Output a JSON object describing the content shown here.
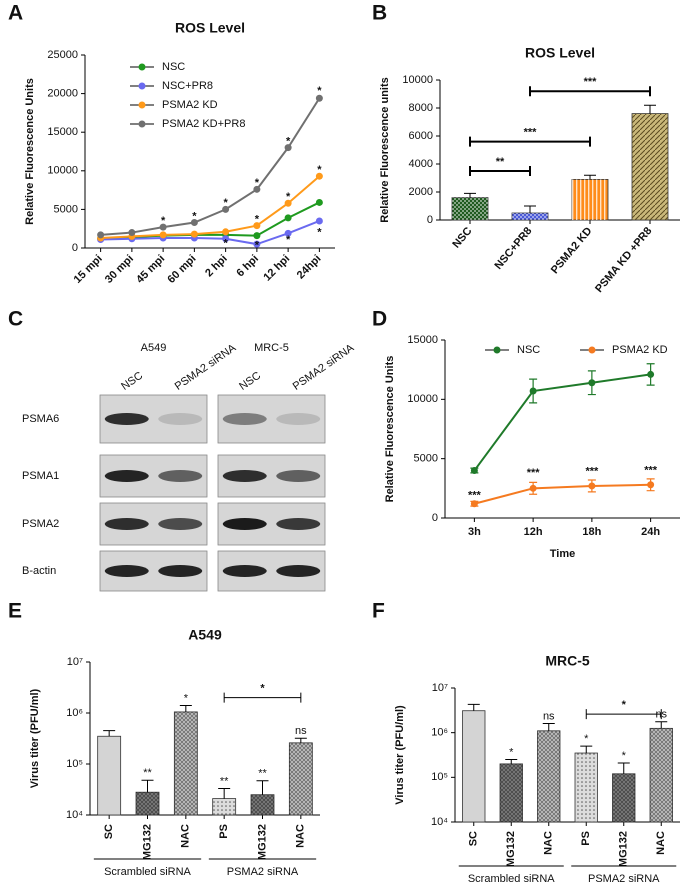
{
  "chart_data": [
    {
      "panel": "A",
      "type": "line",
      "title": "ROS Level",
      "y_label": "Relative Fluorescence Units",
      "categories": [
        "15 mpi",
        "30 mpi",
        "45 mpi",
        "60 mpi",
        "2 hpi",
        "6 hpi",
        "12 hpi",
        "24hpi"
      ],
      "series": [
        {
          "name": "NSC",
          "color": "#1f9a1f",
          "values": [
            1200,
            1400,
            1600,
            1700,
            1700,
            1600,
            3900,
            5900
          ]
        },
        {
          "name": "NSC+PR8",
          "color": "#6a6af0",
          "values": [
            1100,
            1200,
            1300,
            1300,
            1200,
            500,
            1900,
            3500
          ]
        },
        {
          "name": "PSMA2 KD",
          "color": "#ff9a1a",
          "values": [
            1300,
            1500,
            1700,
            1800,
            2100,
            2900,
            5800,
            9300
          ]
        },
        {
          "name": "PSMA2 KD+PR8",
          "color": "#707070",
          "values": [
            1700,
            2000,
            2700,
            3300,
            5000,
            7600,
            13000,
            19400
          ]
        }
      ],
      "ylim": [
        0,
        25000
      ],
      "yticks": [
        0,
        5000,
        10000,
        15000,
        20000,
        25000
      ],
      "legend": "upper left",
      "annotations": [
        {
          "text": "*",
          "category": "45 mpi",
          "y": 3500
        },
        {
          "text": "*",
          "category": "60 mpi",
          "y": 4100
        },
        {
          "text": "*",
          "category": "2 hpi",
          "y": 5800
        },
        {
          "text": "*",
          "category": "6 hpi",
          "y": 8400
        },
        {
          "text": "*",
          "category": "12 hpi",
          "y": 13800
        },
        {
          "text": "*",
          "category": "24hpi",
          "y": 20300
        },
        {
          "text": "*",
          "category": "6 hpi",
          "y": 3700
        },
        {
          "text": "*",
          "category": "12 hpi",
          "y": 6600
        },
        {
          "text": "*",
          "category": "24hpi",
          "y": 10100
        },
        {
          "text": "*",
          "category": "2 hpi",
          "y": 600
        },
        {
          "text": "*",
          "category": "6 hpi",
          "y": 300
        },
        {
          "text": "*",
          "category": "12 hpi",
          "y": 1000
        },
        {
          "text": "*",
          "category": "24hpi",
          "y": 2000
        }
      ]
    },
    {
      "panel": "B",
      "type": "bar",
      "title": "ROS Level",
      "y_label": "Relative Fluorescence units",
      "categories": [
        "NSC",
        "NSC+PR8",
        "PSMA2 KD",
        "PSMA KD +PR8"
      ],
      "values": [
        1600,
        500,
        2900,
        7600
      ],
      "errors": [
        300,
        500,
        300,
        600
      ],
      "colors": [
        "#1f5a1f",
        "#4a5ad8",
        "#ff8c1a",
        "#c9b87a"
      ],
      "patterns": [
        "checker",
        "checker",
        "stripes",
        "diagonal"
      ],
      "ylim": [
        0,
        10000
      ],
      "yticks": [
        0,
        2000,
        4000,
        6000,
        8000,
        10000
      ],
      "brackets": [
        {
          "text": "**",
          "from": 0,
          "to": 1,
          "y": 3500
        },
        {
          "text": "***",
          "from": 0,
          "to": 2,
          "y": 5600
        },
        {
          "text": "***",
          "from": 1,
          "to": 3,
          "y": 9200
        }
      ]
    },
    {
      "panel": "D",
      "type": "line",
      "y_label": "Relative Fluorescence Units",
      "x_label": "Time",
      "categories": [
        "3h",
        "12h",
        "18h",
        "24h"
      ],
      "series": [
        {
          "name": "NSC",
          "color": "#1f7a2a",
          "values": [
            4000,
            10700,
            11400,
            12100
          ],
          "errors": [
            200,
            1000,
            1000,
            900
          ]
        },
        {
          "name": "PSMA2 KD",
          "color": "#f57a20",
          "values": [
            1200,
            2500,
            2700,
            2800
          ],
          "errors": [
            200,
            500,
            500,
            500
          ]
        }
      ],
      "ylim": [
        0,
        15000
      ],
      "yticks": [
        0,
        5000,
        10000,
        15000
      ],
      "legend": "top",
      "annotations": [
        {
          "text": "***",
          "category": "3h",
          "y": 1900
        },
        {
          "text": "***",
          "category": "12h",
          "y": 3800
        },
        {
          "text": "***",
          "category": "18h",
          "y": 3900
        },
        {
          "text": "***",
          "category": "24h",
          "y": 4000
        }
      ]
    },
    {
      "panel": "E",
      "type": "bar",
      "title": "A549",
      "y_label": "Virus titer (PFU/ml)",
      "categories": [
        "SC",
        "MG132",
        "NAC",
        "PS",
        "MG132",
        "NAC"
      ],
      "values": [
        350000,
        28000,
        1050000,
        21000,
        25000,
        260000
      ],
      "errors": [
        100000,
        20000,
        350000,
        12000,
        22000,
        60000
      ],
      "markers": [
        null,
        "**",
        "*",
        "**",
        "**",
        "ns"
      ],
      "colors": [
        "#d4d4d4",
        "#7a7a7a",
        "#bdbdbd",
        "#dcdcdc",
        "#7a7a7a",
        "#bdbdbd"
      ],
      "patterns": [
        null,
        "crosshatch",
        "crosshatch",
        "dots",
        "crosshatch",
        "crosshatch"
      ],
      "log_y": true,
      "ylim": [
        10000,
        10000000
      ],
      "yticks": [
        {
          "value": 10000,
          "label": "10⁴"
        },
        {
          "value": 100000,
          "label": "10⁵"
        },
        {
          "value": 1000000,
          "label": "10⁶"
        },
        {
          "value": 10000000,
          "label": "10⁷"
        }
      ],
      "brackets": [
        {
          "text": "*",
          "from": 3,
          "to": 5,
          "y": 2000000
        }
      ],
      "groups": [
        {
          "label": "Scrambled siRNA",
          "from": 0,
          "to": 2
        },
        {
          "label": "PSMA2 siRNA",
          "from": 3,
          "to": 5
        }
      ]
    },
    {
      "panel": "F",
      "type": "bar",
      "title": "MRC-5",
      "y_label": "Virus titer (PFU/ml)",
      "categories": [
        "SC",
        "MG132",
        "NAC",
        "PS",
        "MG132",
        "NAC"
      ],
      "values": [
        3100000,
        200000,
        1100000,
        350000,
        120000,
        1250000
      ],
      "errors": [
        1200000,
        50000,
        500000,
        150000,
        90000,
        500000
      ],
      "markers": [
        null,
        "*",
        "ns",
        "*",
        "*",
        "ns"
      ],
      "colors": [
        "#d4d4d4",
        "#7a7a7a",
        "#bdbdbd",
        "#dcdcdc",
        "#7a7a7a",
        "#bdbdbd"
      ],
      "patterns": [
        null,
        "crosshatch",
        "crosshatch",
        "dots",
        "crosshatch",
        "crosshatch"
      ],
      "log_y": true,
      "ylim": [
        10000,
        10000000
      ],
      "yticks": [
        {
          "value": 10000,
          "label": "10⁴"
        },
        {
          "value": 100000,
          "label": "10⁵"
        },
        {
          "value": 1000000,
          "label": "10⁶"
        },
        {
          "value": 10000000,
          "label": "10⁷"
        }
      ],
      "brackets": [
        {
          "text": "*",
          "from": 3,
          "to": 5,
          "y": 2600000
        }
      ],
      "groups": [
        {
          "label": "Scrambled siRNA",
          "from": 0,
          "to": 2
        },
        {
          "label": "PSMA2 siRNA",
          "from": 3,
          "to": 5
        }
      ]
    }
  ],
  "blot": {
    "panel": "C",
    "cell_lines": [
      "A549",
      "MRC-5"
    ],
    "lanes": [
      "NSC",
      "PSMA2 siRNA"
    ],
    "proteins": [
      "PSMA6",
      "PSMA1",
      "PSMA2",
      "B-actin"
    ]
  }
}
